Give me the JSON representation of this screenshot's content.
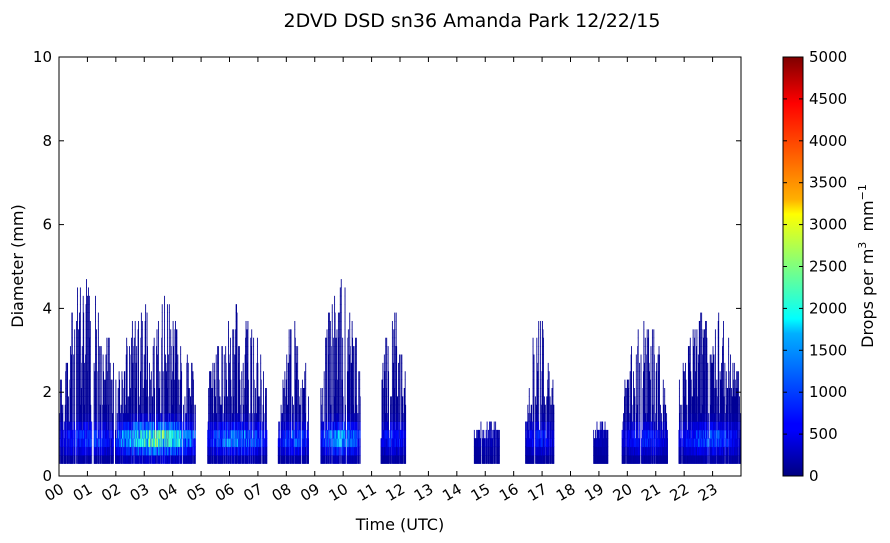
{
  "chart_data": {
    "type": "heatmap",
    "title": "2DVD DSD sn36 Amanda Park 12/22/15",
    "xlabel": "Time (UTC)",
    "ylabel": "Diameter (mm)",
    "xlim": [
      0,
      24
    ],
    "ylim": [
      0,
      10
    ],
    "x_ticks": [
      "00",
      "01",
      "02",
      "03",
      "04",
      "05",
      "06",
      "07",
      "08",
      "09",
      "10",
      "11",
      "12",
      "13",
      "14",
      "15",
      "16",
      "17",
      "18",
      "19",
      "20",
      "21",
      "22",
      "23"
    ],
    "y_ticks": [
      0,
      2,
      4,
      6,
      8,
      10
    ],
    "colorbar": {
      "label": "Drops per m³ mm⁻¹",
      "label_base": "Drops per m",
      "label_exp1": "3",
      "label_mid": "  mm",
      "label_exp2": "−1",
      "min": 0,
      "max": 5000,
      "ticks": [
        0,
        500,
        1000,
        1500,
        2000,
        2500,
        3000,
        3500,
        4000,
        4500,
        5000
      ],
      "colormap": "jet"
    },
    "diameter_bin_mm": 0.2,
    "min_diameter_mm": 0.3,
    "rain_periods": [
      {
        "start_hour": 0.02,
        "end_hour": 2.0,
        "max_diameter_mm": 4.7,
        "peak_drops": 1200
      },
      {
        "start_hour": 2.0,
        "end_hour": 4.8,
        "max_diameter_mm": 4.4,
        "peak_drops": 3000
      },
      {
        "start_hour": 5.2,
        "end_hour": 7.3,
        "max_diameter_mm": 4.1,
        "peak_drops": 1700
      },
      {
        "start_hour": 7.7,
        "end_hour": 8.8,
        "max_diameter_mm": 3.7,
        "peak_drops": 1300
      },
      {
        "start_hour": 9.2,
        "end_hour": 10.6,
        "max_diameter_mm": 4.7,
        "peak_drops": 2000
      },
      {
        "start_hour": 11.3,
        "end_hour": 12.2,
        "max_diameter_mm": 3.9,
        "peak_drops": 1000
      },
      {
        "start_hour": 14.6,
        "end_hour": 15.5,
        "max_diameter_mm": 1.3,
        "peak_drops": 300
      },
      {
        "start_hour": 16.4,
        "end_hour": 17.4,
        "max_diameter_mm": 3.7,
        "peak_drops": 1000
      },
      {
        "start_hour": 18.8,
        "end_hour": 19.3,
        "max_diameter_mm": 1.3,
        "peak_drops": 300
      },
      {
        "start_hour": 19.8,
        "end_hour": 21.4,
        "max_diameter_mm": 3.7,
        "peak_drops": 1000
      },
      {
        "start_hour": 21.8,
        "end_hour": 24.0,
        "max_diameter_mm": 4.1,
        "peak_drops": 1300
      }
    ]
  }
}
